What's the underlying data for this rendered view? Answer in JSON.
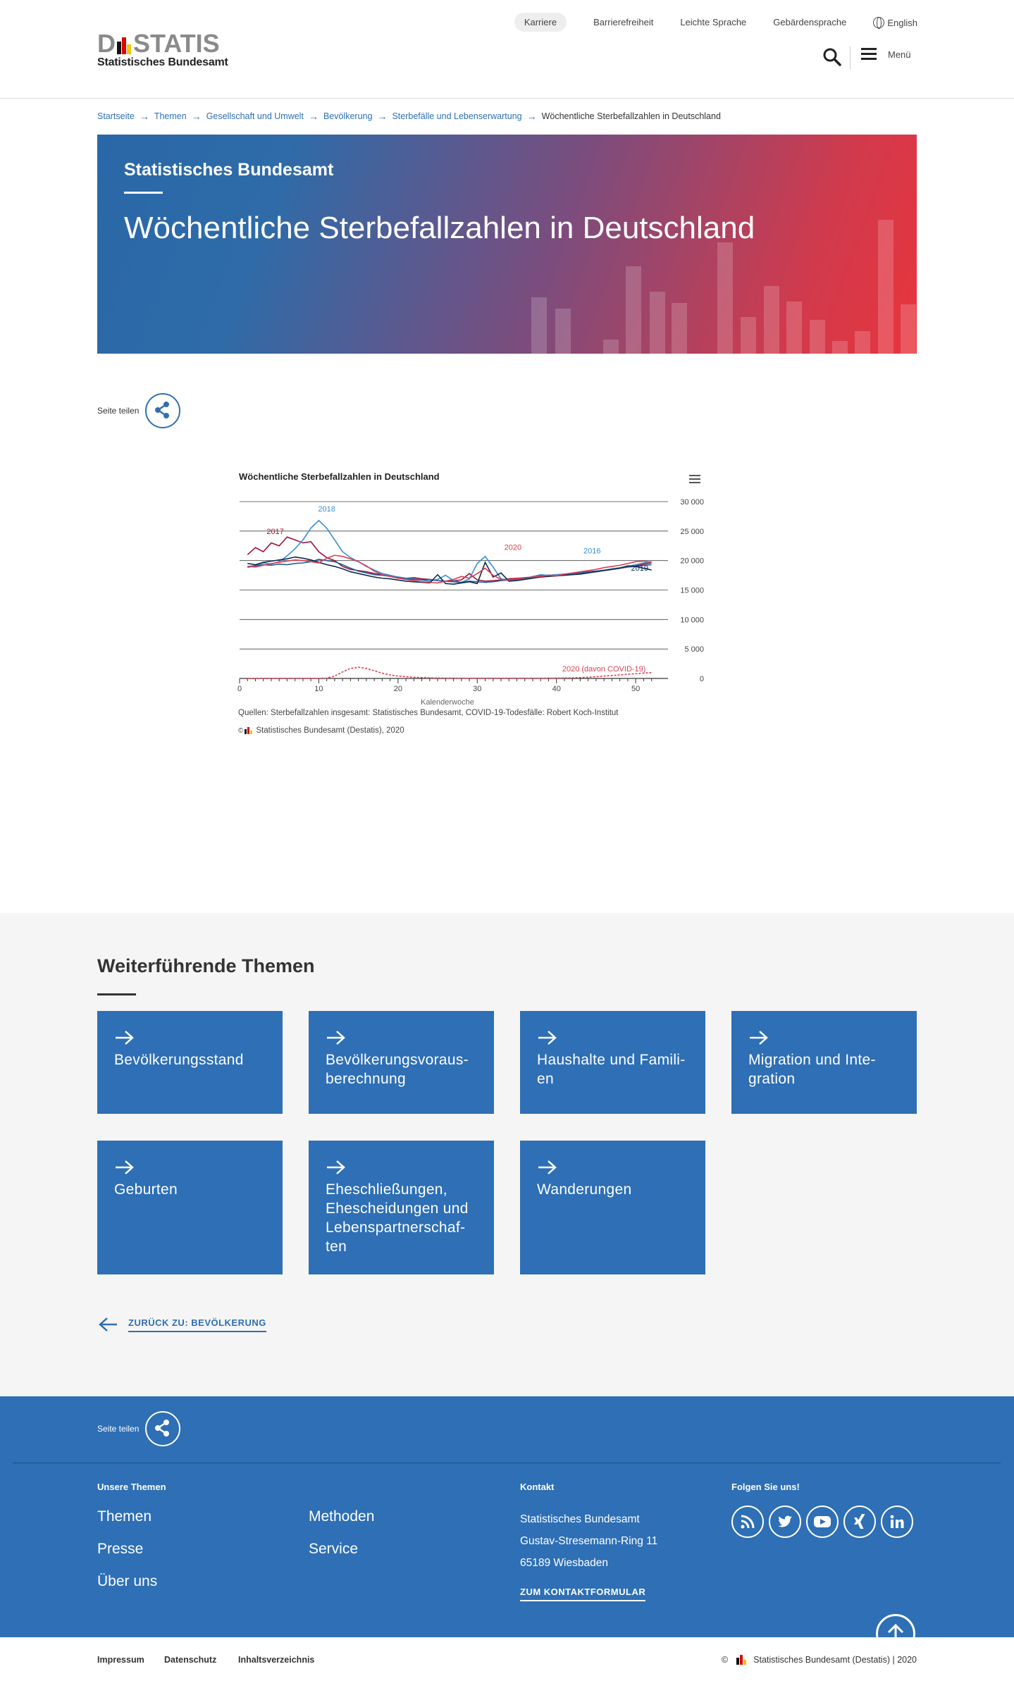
{
  "header": {
    "logo_text": "DESTATIS",
    "logo_sub": "Statistisches Bundesamt",
    "topnav": [
      "Karriere",
      "Barrierefreiheit",
      "Leichte Sprache",
      "Gebärdensprache"
    ],
    "language": "English",
    "menu_label": "Menü"
  },
  "breadcrumb": [
    "Startseite",
    "Themen",
    "Gesellschaft und Umwelt",
    "Bevölkerung",
    "Sterbefälle und Lebenserwartung"
  ],
  "breadcrumb_current": "Wöchentliche Sterbefallzahlen in Deutschland",
  "hero": {
    "sup": "Statistisches Bundesamt",
    "title": "Wöchentliche Sterbefallzahlen in Deutschland"
  },
  "share_label": "Seite teilen",
  "chart_data": {
    "type": "line",
    "title": "Wöchentliche Sterbefallzahlen in Deutschland",
    "xlabel": "Kalenderwoche",
    "ylabel": "",
    "xlim": [
      0,
      52
    ],
    "ylim": [
      0,
      30000
    ],
    "x_ticks": [
      "0",
      "10",
      "20",
      "30",
      "40",
      "50"
    ],
    "y_ticks": [
      "30 000",
      "25 000",
      "20 000",
      "15 000",
      "10 000",
      "5 000",
      "0"
    ],
    "grid": true,
    "source": "Quellen: Sterbefallzahlen insgesamt: Statistisches Bundesamt, COVID-19-Todesfälle: Robert Koch-Institut",
    "copyright": "Statistisches Bundesamt (Destatis), 2020",
    "series": [
      {
        "name": "2017",
        "color": "#a3123a",
        "x": [
          1,
          2,
          3,
          4,
          5,
          6,
          7,
          8,
          9,
          10,
          11,
          12,
          13,
          14,
          15,
          16,
          17,
          18,
          19,
          20,
          21,
          22,
          23,
          24,
          25,
          26,
          27,
          28,
          29,
          30,
          31,
          32,
          33,
          34,
          35,
          36,
          37,
          38,
          39,
          40,
          41,
          42,
          43,
          44,
          45,
          46,
          47,
          48,
          49,
          50,
          51,
          52
        ],
        "y": [
          21000,
          22200,
          21500,
          23000,
          22500,
          24000,
          23500,
          23000,
          23200,
          21500,
          20500,
          20000,
          19000,
          18500,
          18300,
          18100,
          17800,
          17600,
          17400,
          17200,
          17000,
          17100,
          16900,
          16800,
          16600,
          16500,
          16600,
          16700,
          17800,
          16700,
          16500,
          16600,
          16700,
          16900,
          17000,
          17100,
          17200,
          17400,
          17500,
          17600,
          17700,
          17800,
          17900,
          18000,
          18100,
          18300,
          18500,
          18700,
          18900,
          19100,
          19400,
          19600
        ]
      },
      {
        "name": "2018",
        "color": "#3a8fd0",
        "x": [
          1,
          2,
          3,
          4,
          5,
          6,
          7,
          8,
          9,
          10,
          11,
          12,
          13,
          14,
          15,
          16,
          17,
          18,
          19,
          20,
          21,
          22,
          23,
          24,
          25,
          26,
          27,
          28,
          29,
          30,
          31,
          32,
          33,
          34,
          35,
          36,
          37,
          38,
          39,
          40,
          41,
          42,
          43,
          44,
          45,
          46,
          47,
          48,
          49,
          50,
          51,
          52
        ],
        "y": [
          18800,
          19200,
          19600,
          19400,
          19800,
          20800,
          22000,
          23500,
          25500,
          26800,
          25500,
          23500,
          21500,
          20500,
          19800,
          19000,
          18400,
          17800,
          17500,
          17200,
          17000,
          16900,
          16700,
          16500,
          16800,
          17500,
          16600,
          16300,
          16900,
          19500,
          20700,
          18900,
          16900,
          16600,
          16800,
          17000,
          17300,
          17600,
          17500,
          17600,
          17700,
          17800,
          18000,
          18100,
          18200,
          18400,
          18600,
          18800,
          19000,
          19300,
          19600,
          19800
        ]
      },
      {
        "name": "2016",
        "color": "#1f5f99",
        "x": [
          1,
          2,
          3,
          4,
          5,
          6,
          7,
          8,
          9,
          10,
          11,
          12,
          13,
          14,
          15,
          16,
          17,
          18,
          19,
          20,
          21,
          22,
          23,
          24,
          25,
          26,
          27,
          28,
          29,
          30,
          31,
          32,
          33,
          34,
          35,
          36,
          37,
          38,
          39,
          40,
          41,
          42,
          43,
          44,
          45,
          46,
          47,
          48,
          49,
          50,
          51,
          52
        ],
        "y": [
          19000,
          19100,
          19300,
          19200,
          19400,
          19300,
          19500,
          19600,
          19800,
          20200,
          20000,
          19800,
          19300,
          18700,
          18200,
          17900,
          17600,
          17500,
          17300,
          17100,
          16900,
          16800,
          16700,
          16800,
          16600,
          16500,
          16400,
          16300,
          16500,
          16400,
          16300,
          16400,
          16600,
          16700,
          16800,
          17000,
          17100,
          17300,
          17500,
          17400,
          17600,
          17800,
          17900,
          18100,
          18200,
          18300,
          18500,
          18700,
          18900,
          19000,
          19200,
          19300
        ]
      },
      {
        "name": "2019",
        "color": "#0d2b52",
        "x": [
          1,
          2,
          3,
          4,
          5,
          6,
          7,
          8,
          9,
          10,
          11,
          12,
          13,
          14,
          15,
          16,
          17,
          18,
          19,
          20,
          21,
          22,
          23,
          24,
          25,
          26,
          27,
          28,
          29,
          30,
          31,
          32,
          33,
          34,
          35,
          36,
          37,
          38,
          39,
          40,
          41,
          42,
          43,
          44,
          45,
          46,
          47,
          48,
          49,
          50,
          51,
          52
        ],
        "y": [
          19500,
          19300,
          19700,
          19900,
          20100,
          20300,
          20600,
          20400,
          20100,
          19700,
          19300,
          19000,
          18600,
          18100,
          17800,
          17500,
          17200,
          17000,
          16900,
          16700,
          16500,
          16400,
          16300,
          16200,
          17600,
          16100,
          16000,
          16200,
          16400,
          16100,
          19700,
          17200,
          17900,
          16500,
          16600,
          16800,
          17000,
          17200,
          17300,
          17400,
          17500,
          17600,
          17700,
          17900,
          18100,
          18300,
          18500,
          18700,
          19100,
          19000,
          18700,
          18400
        ]
      },
      {
        "name": "2020",
        "color": "#e03c4f",
        "x": [
          1,
          2,
          3,
          4,
          5,
          6,
          7,
          8,
          9,
          10,
          11,
          12,
          13,
          14,
          15,
          16,
          17,
          18,
          19,
          20,
          21,
          22,
          23,
          24,
          25,
          26,
          27,
          28,
          29,
          30,
          31,
          32,
          33,
          34,
          35,
          36,
          37,
          38,
          39,
          40,
          41,
          42,
          43,
          44,
          45,
          46,
          47,
          48,
          49,
          50,
          51,
          52
        ],
        "y": [
          19000,
          18900,
          19200,
          19500,
          19700,
          19900,
          20100,
          20000,
          19800,
          19600,
          20400,
          20900,
          20700,
          20300,
          19800,
          19100,
          18200,
          17600,
          17300,
          17000,
          16800,
          16600,
          16400,
          16300,
          16200,
          16500,
          16800,
          17300,
          17000,
          17800,
          18700,
          17500,
          16800,
          16700,
          16900,
          17100,
          17200,
          17300,
          17500,
          17400,
          17700,
          17900,
          18100,
          18300,
          18500,
          18800,
          19000,
          19200,
          19500,
          19800,
          19900,
          19700
        ]
      },
      {
        "name": "2020 (davon COVID-19)",
        "color": "#e03c4f",
        "x": [
          1,
          2,
          3,
          4,
          5,
          6,
          7,
          8,
          9,
          10,
          11,
          12,
          13,
          14,
          15,
          16,
          17,
          18,
          19,
          20,
          21,
          22,
          23,
          24,
          25,
          26,
          27,
          28,
          29,
          30,
          31,
          32,
          33,
          34,
          35,
          36,
          37,
          38,
          39,
          40,
          41,
          42,
          43,
          44,
          45,
          46,
          47,
          48,
          49,
          50,
          51,
          52
        ],
        "y": [
          0,
          0,
          0,
          0,
          0,
          0,
          0,
          0,
          0,
          0,
          50,
          400,
          1100,
          1700,
          1900,
          1700,
          1300,
          900,
          600,
          400,
          300,
          200,
          150,
          100,
          80,
          60,
          50,
          40,
          40,
          40,
          40,
          40,
          40,
          40,
          40,
          40,
          40,
          40,
          50,
          60,
          80,
          100,
          150,
          200,
          300,
          400,
          500,
          600,
          700,
          800,
          900,
          1000
        ]
      }
    ]
  },
  "related": {
    "title": "Weiterführende Themen",
    "tiles": [
      "Bevölkerungsstand",
      "Bevölkerungsvoraus- berechnung",
      "Haushalte und Famili- en",
      "Migration und Inte- gration",
      "Geburten",
      "Eheschließungen, Ehescheidungen und Lebenspartnerschaf- ten",
      "Wanderungen"
    ],
    "back_label": "ZURÜCK ZU: BEVÖLKERUNG"
  },
  "footer": {
    "share_label": "Seite teilen",
    "themes_heading": "Unsere Themen",
    "links_col1": [
      "Themen",
      "Presse",
      "Über uns"
    ],
    "links_col2": [
      "Methoden",
      "Service"
    ],
    "contact_heading": "Kontakt",
    "contact_lines": [
      "Statistisches Bundesamt",
      "Gustav-Stresemann-Ring 11",
      "65189 Wiesbaden"
    ],
    "contact_button": "ZUM KONTAKTFORMULAR",
    "follow_heading": "Folgen Sie uns!",
    "social": [
      "rss-icon",
      "twitter-icon",
      "youtube-icon",
      "xing-icon",
      "linkedin-icon"
    ]
  },
  "bottombar": {
    "links": [
      "Impressum",
      "Datenschutz",
      "Inhaltsverzeichnis"
    ],
    "copyright_symbol": "©",
    "copyright": "Statistisches Bundesamt (Destatis) | 2020"
  }
}
